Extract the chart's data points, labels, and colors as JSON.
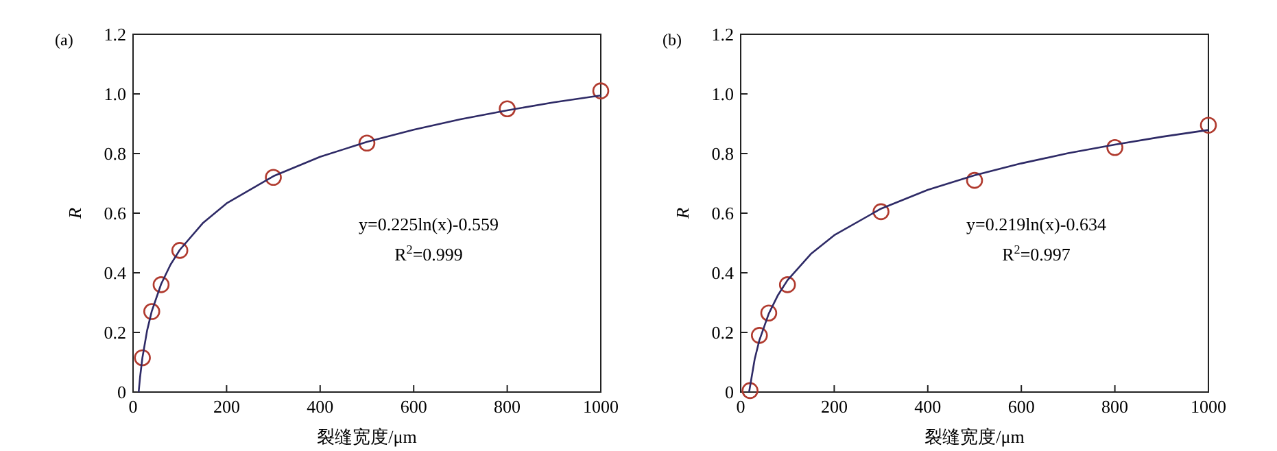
{
  "chart_data": [
    {
      "type": "scatter",
      "xlabel": "裂缝宽度/μm",
      "ylabel": "R",
      "xlim": [
        0,
        1000
      ],
      "xticks": [
        0,
        200,
        400,
        600,
        800,
        1000
      ],
      "ylim": [
        0,
        1.2
      ],
      "yticks": [
        0,
        0.2,
        0.4,
        0.6,
        0.8,
        {
          "value": 1,
          "label": "1.0"
        },
        1.2
      ],
      "grid": false,
      "annotations": [
        "(a)",
        "y=0.225ln(x)-0.559",
        "R$^{2}$=0.999"
      ],
      "series": [
        {
          "marker": "circle",
          "color": "#b03a2e",
          "x": [
            20,
            40,
            60,
            100,
            300,
            500,
            800,
            1000
          ],
          "values": [
            0.115,
            0.27,
            0.36,
            0.475,
            0.72,
            0.835,
            0.95,
            1.01
          ]
        },
        {
          "type": "line",
          "marker": "none",
          "line_style": "solid",
          "color": "#2e2a66",
          "x": [
            12,
            15,
            20,
            30,
            40,
            60,
            80,
            100,
            150,
            200,
            300,
            400,
            500,
            600,
            700,
            800,
            900,
            1000
          ],
          "values": [
            0.0,
            0.05,
            0.115,
            0.206,
            0.271,
            0.362,
            0.427,
            0.477,
            0.568,
            0.633,
            0.724,
            0.789,
            0.839,
            0.88,
            0.915,
            0.945,
            0.972,
            0.995
          ]
        }
      ]
    },
    {
      "type": "scatter",
      "xlabel": "裂缝宽度/μm",
      "ylabel": "R",
      "xlim": [
        0,
        1000
      ],
      "xticks": [
        0,
        200,
        400,
        600,
        800,
        1000
      ],
      "ylim": [
        0,
        1.2
      ],
      "yticks": [
        0,
        0.2,
        0.4,
        0.6,
        0.8,
        {
          "value": 1,
          "label": "1.0"
        },
        1.2
      ],
      "grid": false,
      "annotations": [
        "(b)",
        "y=0.219ln(x)-0.634",
        "R$^{2}$=0.997"
      ],
      "series": [
        {
          "marker": "circle",
          "color": "#b03a2e",
          "x": [
            20,
            40,
            60,
            100,
            300,
            500,
            800,
            1000
          ],
          "values": [
            0.005,
            0.19,
            0.265,
            0.36,
            0.605,
            0.71,
            0.82,
            0.895
          ]
        },
        {
          "type": "line",
          "marker": "none",
          "line_style": "solid",
          "color": "#2e2a66",
          "x": [
            18,
            30,
            40,
            60,
            80,
            100,
            150,
            200,
            300,
            400,
            500,
            600,
            700,
            800,
            900,
            1000
          ],
          "values": [
            0.0,
            0.111,
            0.174,
            0.263,
            0.326,
            0.375,
            0.463,
            0.526,
            0.615,
            0.678,
            0.727,
            0.767,
            0.801,
            0.83,
            0.856,
            0.879
          ]
        }
      ]
    }
  ]
}
